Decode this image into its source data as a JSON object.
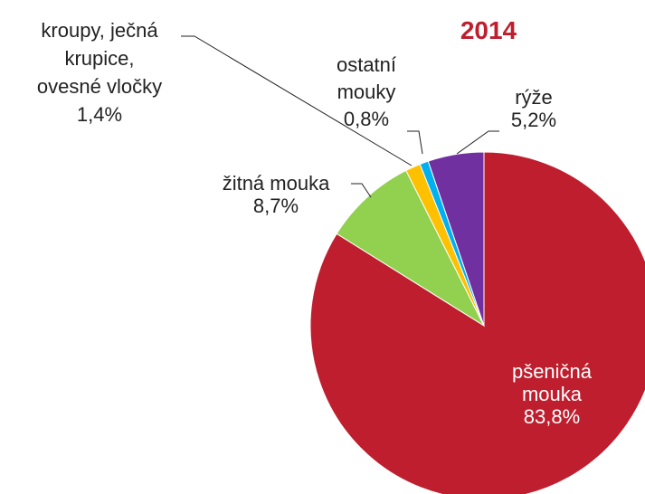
{
  "chart_data": {
    "type": "pie",
    "title": "2014",
    "categories": [
      "pšeničná mouka",
      "žitná mouka",
      "kroupy, ječná krupice, ovesné vločky",
      "ostatní mouky",
      "rýže"
    ],
    "values": [
      83.8,
      8.7,
      1.4,
      0.8,
      5.2
    ],
    "value_labels": [
      "83,8%",
      "8,7%",
      "1,4%",
      "0,8%",
      "5,2%"
    ],
    "colors": [
      "#be1e2d",
      "#92d050",
      "#ffc000",
      "#00b0f0",
      "#7030a0"
    ]
  }
}
